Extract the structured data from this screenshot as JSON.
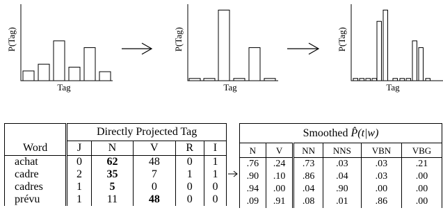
{
  "chart_data": [
    {
      "type": "bar",
      "ylabel": "P(Tag)",
      "xlabel": "Tag",
      "values": [
        0.13,
        0.22,
        0.53,
        0.18,
        0.44,
        0.12
      ],
      "ylim": [
        0,
        1
      ]
    },
    {
      "type": "bar",
      "ylabel": "P(Tag)",
      "xlabel": "Tag",
      "values": [
        0.03,
        0.03,
        0.94,
        0.03,
        0.44,
        0.03
      ],
      "ylim": [
        0,
        1
      ]
    },
    {
      "type": "bar",
      "ylabel": "P(Tag)",
      "xlabel": "Tag",
      "values": [
        0.03,
        0.03,
        0.03,
        0.03,
        0.79,
        0.94,
        0.03,
        0.03,
        0.03,
        0.53,
        0.44,
        0.03
      ],
      "ylim": [
        0,
        1
      ]
    }
  ],
  "left_table": {
    "group_header": "Directly Projected Tag",
    "word_header": "Word",
    "tags": [
      "J",
      "N",
      "V",
      "R",
      "I"
    ],
    "rows": [
      {
        "word": "achat",
        "values": [
          "0",
          "62",
          "48",
          "0",
          "1"
        ],
        "bold_index": 1
      },
      {
        "word": "cadre",
        "values": [
          "2",
          "35",
          "7",
          "1",
          "1"
        ],
        "bold_index": 1
      },
      {
        "word": "cadres",
        "values": [
          "1",
          "5",
          "0",
          "0",
          "0"
        ],
        "bold_index": 1
      },
      {
        "word": "prévu",
        "values": [
          "1",
          "11",
          "48",
          "0",
          "0"
        ],
        "bold_index": 2
      }
    ]
  },
  "right_table": {
    "title_prefix": "Smoothed ",
    "title_math": "P̂(t|w)",
    "tags": [
      "N",
      "V",
      "NN",
      "NNS",
      "VBN",
      "VBG"
    ],
    "rows": [
      [
        ".76",
        ".24",
        ".73",
        ".03",
        ".03",
        ".21"
      ],
      [
        ".90",
        ".10",
        ".86",
        ".04",
        ".03",
        ".00"
      ],
      [
        ".94",
        ".00",
        ".04",
        ".90",
        ".00",
        ".00"
      ],
      [
        ".09",
        ".91",
        ".08",
        ".01",
        ".86",
        ".00"
      ]
    ]
  }
}
